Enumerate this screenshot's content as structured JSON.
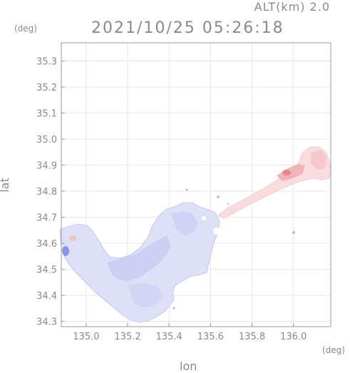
{
  "header": {
    "altitude_label": "ALT(km) 2.0",
    "timestamp": "2021/10/25 05:26:18"
  },
  "axes": {
    "xlabel": "lon",
    "ylabel": "lat",
    "x_unit": "(deg)",
    "y_unit": "(deg)"
  },
  "chart_data": {
    "type": "heatmap",
    "xlim": [
      134.88,
      136.18
    ],
    "ylim": [
      34.28,
      35.37
    ],
    "x_ticks": [
      135.0,
      135.2,
      135.4,
      135.6,
      135.8,
      136.0
    ],
    "x_tick_labels": [
      "135.0",
      "135.2",
      "135.4",
      "135.6",
      "135.8",
      "136.0"
    ],
    "y_ticks": [
      34.3,
      34.4,
      34.5,
      34.6,
      34.7,
      34.8,
      34.9,
      35.0,
      35.1,
      35.2,
      35.3
    ],
    "y_tick_labels": [
      "34.3",
      "34.4",
      "34.5",
      "34.6",
      "34.7",
      "34.8",
      "34.9",
      "35.0",
      "35.1",
      "35.2",
      "35.3"
    ],
    "grid": true,
    "colors": {
      "negative_light": "#d8dcf6",
      "negative_mid": "#b8c0f0",
      "negative_strong": "#6a78e6",
      "positive_light": "#fbe4e6",
      "positive_mid": "#f6c2c6",
      "positive_strong": "#e08a90",
      "axis": "#9a9a9a"
    }
  }
}
